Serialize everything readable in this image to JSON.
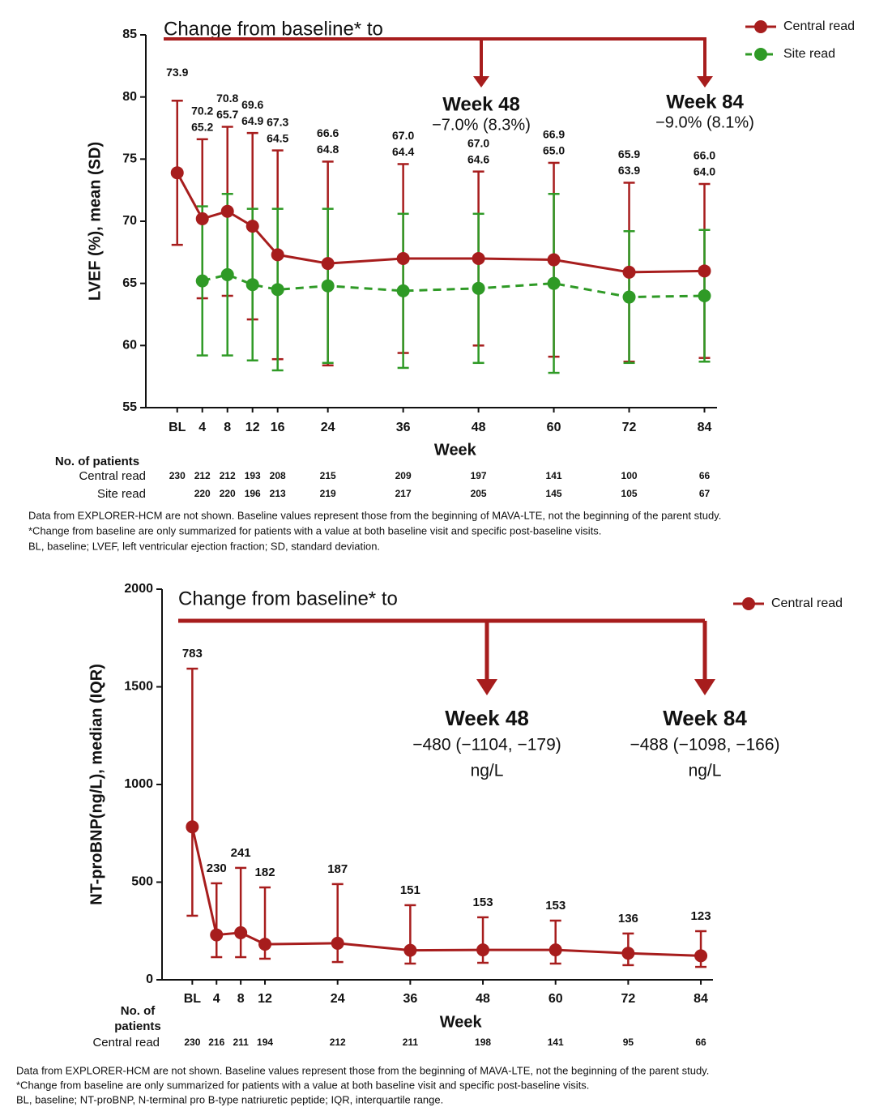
{
  "chart_data": [
    {
      "type": "line",
      "annotation_title": "Change from baseline* to",
      "annotations": [
        {
          "title": "Week 48",
          "lines": [
            "−7.0% (8.3%)"
          ]
        },
        {
          "title": "Week 84",
          "lines": [
            "−9.0% (8.1%)"
          ]
        }
      ],
      "ylabel": "LVEF (%), mean (SD)",
      "xlabel": "Week",
      "xlim": [
        -5,
        86
      ],
      "xticks": [
        {
          "value": 0,
          "label": "BL"
        },
        4,
        8,
        12,
        16,
        24,
        36,
        48,
        60,
        72,
        84
      ],
      "ylim": [
        55,
        85
      ],
      "yticks": [
        55,
        60,
        65,
        70,
        75,
        80,
        85
      ],
      "grid": false,
      "legend": "upper right",
      "patients_title": [
        "No. of patients"
      ],
      "series": [
        {
          "name": "Central read",
          "color": "#a71d1d",
          "linestyle": "solid",
          "x": [
            0,
            4,
            8,
            12,
            16,
            24,
            36,
            48,
            60,
            72,
            84
          ],
          "values": [
            73.9,
            70.2,
            70.8,
            69.6,
            67.3,
            66.6,
            67.0,
            67.0,
            66.9,
            65.9,
            66.0
          ],
          "value_labels": [
            "73.9",
            "70.2",
            "70.8",
            "69.6",
            "67.3",
            "66.6",
            "67.0",
            "67.0",
            "66.9",
            "65.9",
            "66.0"
          ],
          "errors": [
            5.8,
            6.4,
            6.8,
            7.5,
            8.4,
            8.2,
            7.6,
            7.0,
            7.8,
            7.2,
            7.0
          ],
          "n": [
            230,
            212,
            212,
            193,
            208,
            215,
            209,
            197,
            141,
            100,
            66
          ]
        },
        {
          "name": "Site read",
          "color": "#2f9a26",
          "linestyle": "dashed",
          "x": [
            4,
            8,
            12,
            16,
            24,
            36,
            48,
            60,
            72,
            84
          ],
          "values": [
            65.2,
            65.7,
            64.9,
            64.5,
            64.8,
            64.4,
            64.6,
            65.0,
            63.9,
            64.0
          ],
          "value_labels": [
            "65.2",
            "65.7",
            "64.9",
            "64.5",
            "64.8",
            "64.4",
            "64.6",
            "65.0",
            "63.9",
            "64.0"
          ],
          "errors": [
            6.0,
            6.5,
            6.1,
            6.5,
            6.2,
            6.2,
            6.0,
            7.2,
            5.3,
            5.3
          ],
          "n": [
            220,
            220,
            196,
            213,
            219,
            217,
            205,
            145,
            105,
            67
          ]
        }
      ],
      "notes": [
        "Data from EXPLORER-HCM are not shown. Baseline values represent those from the beginning of MAVA-LTE, not the beginning of the parent study.",
        "*Change from baseline are only summarized for patients with a value at both baseline visit and specific post-baseline visits.",
        "BL, baseline; LVEF, left ventricular ejection fraction; SD, standard deviation."
      ]
    },
    {
      "type": "line",
      "annotation_title": "Change from baseline* to",
      "annotations": [
        {
          "title": "Week 48",
          "lines": [
            "−480 (−1104, −179)",
            "ng/L"
          ]
        },
        {
          "title": "Week 84",
          "lines": [
            "−488 (−1098, −166)",
            "ng/L"
          ]
        }
      ],
      "ylabel": "NT-proBNP(ng/L), median (IQR)",
      "xlabel": "Week",
      "xlim": [
        -5,
        86
      ],
      "xticks": [
        {
          "value": 0,
          "label": "BL"
        },
        4,
        8,
        12,
        24,
        36,
        48,
        60,
        72,
        84
      ],
      "ylim": [
        0,
        2000
      ],
      "yticks": [
        0,
        500,
        1000,
        1500,
        2000
      ],
      "grid": false,
      "legend": "upper right",
      "patients_title": [
        "No. of",
        "patients"
      ],
      "series": [
        {
          "name": "Central read",
          "color": "#a71d1d",
          "linestyle": "solid",
          "x": [
            0,
            4,
            8,
            12,
            24,
            36,
            48,
            60,
            72,
            84
          ],
          "values": [
            783,
            230,
            241,
            182,
            187,
            151,
            153,
            153,
            136,
            123
          ],
          "lower": [
            328,
            116,
            116,
            108,
            91,
            83,
            87,
            83,
            75,
            66
          ],
          "upper": [
            1593,
            494,
            573,
            473,
            490,
            382,
            320,
            303,
            237,
            249
          ],
          "n": [
            230,
            216,
            211,
            194,
            212,
            211,
            198,
            141,
            95,
            66
          ]
        }
      ],
      "notes": [
        "Data from EXPLORER-HCM are not shown. Baseline values represent those from the beginning of MAVA-LTE, not the beginning of the parent study.",
        "*Change from baseline are only summarized for patients with a value at both baseline visit and specific post-baseline visits.",
        "BL, baseline; NT-proBNP, N-terminal pro B-type natriuretic peptide; IQR, interquartile range."
      ]
    }
  ]
}
